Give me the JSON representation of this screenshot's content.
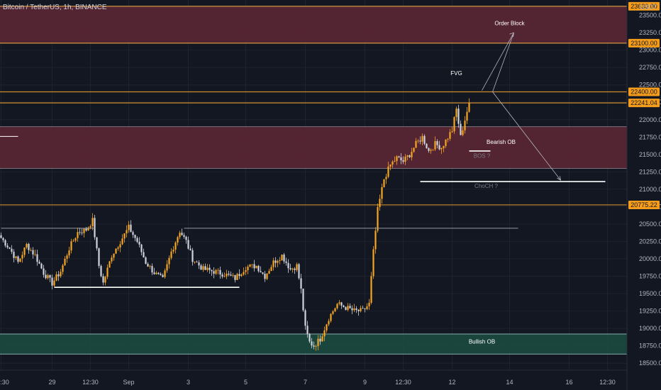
{
  "chart_data": {
    "type": "candlestick",
    "title": "Bitcoin / TetherUS, 1h, BINANCE",
    "currency": "USDT",
    "ylim": [
      18400,
      23720
    ],
    "y_ticks": [
      18500,
      18750,
      19000,
      19250,
      19500,
      19750,
      20000,
      20250,
      20500,
      20750,
      21000,
      21250,
      21500,
      21750,
      22000,
      22250,
      22500,
      22750,
      23000,
      23250,
      23500
    ],
    "x_ticks": [
      {
        "label": "12:30",
        "bar": 0
      },
      {
        "label": "29",
        "bar": 24
      },
      {
        "label": "12:30",
        "bar": 42
      },
      {
        "label": "Sep",
        "bar": 60
      },
      {
        "label": "3",
        "bar": 88
      },
      {
        "label": "5",
        "bar": 115
      },
      {
        "label": "7",
        "bar": 143
      },
      {
        "label": "9",
        "bar": 171
      },
      {
        "label": "12:30",
        "bar": 189
      },
      {
        "label": "12",
        "bar": 212
      },
      {
        "label": "14",
        "bar": 239
      },
      {
        "label": "16",
        "bar": 267
      },
      {
        "label": "12:30",
        "bar": 285
      }
    ],
    "total_bars": 295,
    "price_keypoints": [
      [
        0,
        20300
      ],
      [
        4,
        20150
      ],
      [
        8,
        19950
      ],
      [
        12,
        20200
      ],
      [
        16,
        20050
      ],
      [
        20,
        19800
      ],
      [
        24,
        19650
      ],
      [
        28,
        19820
      ],
      [
        32,
        20150
      ],
      [
        36,
        20380
      ],
      [
        40,
        20420
      ],
      [
        43,
        20550
      ],
      [
        46,
        19900
      ],
      [
        48,
        19650
      ],
      [
        52,
        20050
      ],
      [
        56,
        20250
      ],
      [
        60,
        20450
      ],
      [
        64,
        20250
      ],
      [
        68,
        19950
      ],
      [
        72,
        19800
      ],
      [
        76,
        19700
      ],
      [
        80,
        20100
      ],
      [
        84,
        20400
      ],
      [
        87,
        20250
      ],
      [
        90,
        20000
      ],
      [
        95,
        19850
      ],
      [
        100,
        19820
      ],
      [
        105,
        19780
      ],
      [
        110,
        19720
      ],
      [
        115,
        19880
      ],
      [
        120,
        19900
      ],
      [
        124,
        19750
      ],
      [
        128,
        19950
      ],
      [
        132,
        20050
      ],
      [
        136,
        19850
      ],
      [
        139,
        19900
      ],
      [
        141,
        19550
      ],
      [
        143,
        19000
      ],
      [
        145,
        18800
      ],
      [
        147,
        18750
      ],
      [
        150,
        18850
      ],
      [
        154,
        19150
      ],
      [
        158,
        19350
      ],
      [
        162,
        19300
      ],
      [
        166,
        19250
      ],
      [
        170,
        19250
      ],
      [
        173,
        19350
      ],
      [
        175,
        20100
      ],
      [
        177,
        20700
      ],
      [
        180,
        21150
      ],
      [
        183,
        21350
      ],
      [
        186,
        21450
      ],
      [
        189,
        21400
      ],
      [
        192,
        21500
      ],
      [
        195,
        21650
      ],
      [
        198,
        21750
      ],
      [
        201,
        21550
      ],
      [
        204,
        21650
      ],
      [
        207,
        21600
      ],
      [
        210,
        21750
      ],
      [
        212,
        21850
      ],
      [
        214,
        22150
      ],
      [
        216,
        21750
      ],
      [
        218,
        22000
      ],
      [
        220,
        22241
      ]
    ],
    "zones": [
      {
        "name": "Order Block",
        "bottom": 23100,
        "top": 23630
      },
      {
        "name": "Bearish OB",
        "bottom": 21300,
        "top": 21900
      },
      {
        "name": "Bullish OB",
        "bottom": 18630,
        "top": 18920
      }
    ],
    "horizontal_levels": [
      23630,
      23100,
      22400,
      22241.04,
      20775.22
    ],
    "price_tags": [
      {
        "value": 23630,
        "label": "23630.00"
      },
      {
        "value": 23100,
        "label": "23100.00"
      },
      {
        "value": 22400,
        "label": "22400.00"
      },
      {
        "value": 22241.04,
        "label": "22241.04"
      },
      {
        "value": 20775.22,
        "label": "20775.22"
      }
    ],
    "structure_lines": [
      {
        "from_bar": 0,
        "to_bar": 44,
        "value": 20440,
        "color": "#9598a1",
        "width": 1
      },
      {
        "from_bar": 86,
        "to_bar": 243,
        "value": 20440,
        "color": "#9598a1",
        "width": 1
      },
      {
        "from_bar": 25,
        "to_bar": 112,
        "value": 19590,
        "color": "#ffffff",
        "width": 1.6
      },
      {
        "from_bar": 197,
        "to_bar": 284,
        "value": 21110,
        "color": "#ffffff",
        "width": 1.6
      },
      {
        "from_bar": 220,
        "to_bar": 230,
        "value": 21550,
        "color": "#ffffff",
        "width": 1.6
      },
      {
        "from_bar": -6,
        "to_bar": 8,
        "value": 21760,
        "color": "#ffffff",
        "width": 1
      }
    ],
    "projection_path": [
      {
        "bar": 226,
        "value": 22420
      },
      {
        "bar": 241,
        "value": 23250
      },
      {
        "bar": 231,
        "value": 22400
      },
      {
        "bar": 263,
        "value": 21130
      }
    ],
    "annotations": [
      {
        "text": "Order Block",
        "bar": 239,
        "value": 23360,
        "color": "#ffffff"
      },
      {
        "text": "FVG",
        "bar": 214,
        "value": 22640,
        "color": "#ffffff"
      },
      {
        "text": "Bearish OB",
        "bar": 235,
        "value": 21650,
        "color": "#ffffff"
      },
      {
        "text": "BOS ?",
        "bar": 226,
        "value": 21450,
        "color": "#787b86"
      },
      {
        "text": "ChoCH ?",
        "bar": 228,
        "value": 21020,
        "color": "#787b86"
      },
      {
        "text": "Bullish OB",
        "bar": 226,
        "value": 18780,
        "color": "#ffffff"
      }
    ],
    "colors": {
      "background": "#131722",
      "grid": "#1e222d",
      "candle_up": "#f5a623",
      "candle_down": "#d1d4dc",
      "bearish_zone": "#5b2633",
      "bullish_zone": "#1c4a40",
      "level_line": "#f0a030",
      "price_tag": "#f59d1a"
    }
  }
}
